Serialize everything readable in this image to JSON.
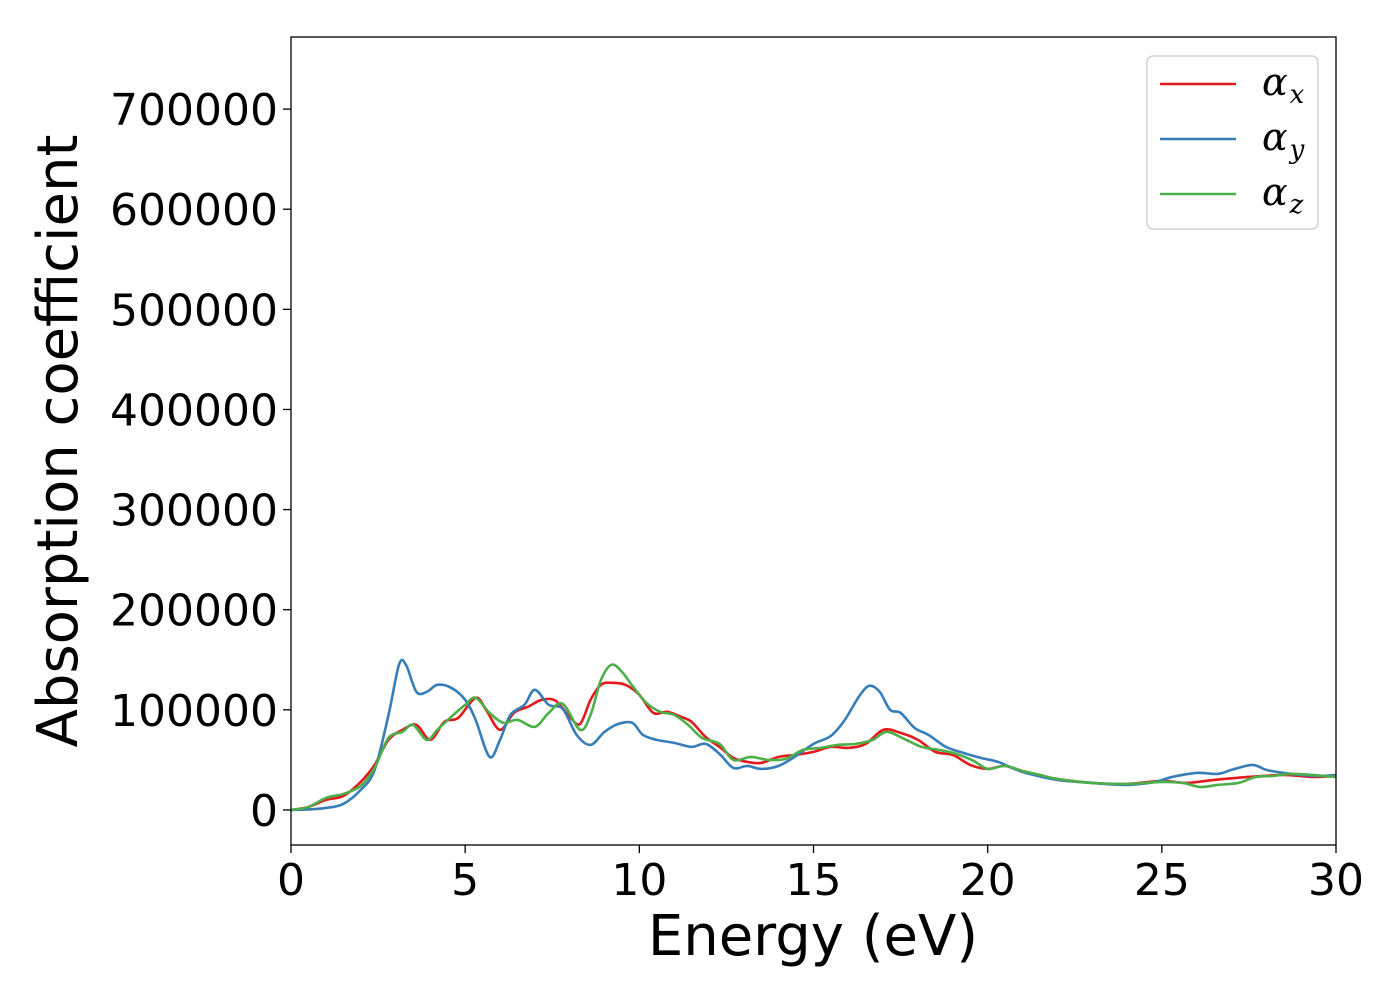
{
  "chart_data": {
    "type": "line",
    "title": "",
    "xlabel": "Energy (eV)",
    "ylabel": "Absorption coefficient",
    "xlim": [
      0,
      30
    ],
    "ylim": [
      -35000,
      772000
    ],
    "xticks": [
      0,
      5,
      10,
      15,
      20,
      25,
      30
    ],
    "yticks": [
      0,
      100000,
      200000,
      300000,
      400000,
      500000,
      600000,
      700000
    ],
    "grid": false,
    "legend_position": "top-right",
    "series": [
      {
        "name": "α_x",
        "label_main": "α",
        "label_sub": "x",
        "color": "#e41a1c",
        "points": [
          [
            0,
            0
          ],
          [
            0.5,
            3000
          ],
          [
            1,
            10000
          ],
          [
            1.5,
            14000
          ],
          [
            2,
            28000
          ],
          [
            2.4,
            45000
          ],
          [
            2.8,
            70000
          ],
          [
            3.2,
            80000
          ],
          [
            3.6,
            85000
          ],
          [
            4,
            70000
          ],
          [
            4.4,
            88000
          ],
          [
            4.8,
            92000
          ],
          [
            5.3,
            112000
          ],
          [
            5.6,
            100000
          ],
          [
            6,
            80000
          ],
          [
            6.4,
            97000
          ],
          [
            6.8,
            103000
          ],
          [
            7.2,
            110000
          ],
          [
            7.6,
            109000
          ],
          [
            8,
            93000
          ],
          [
            8.3,
            86000
          ],
          [
            8.6,
            110000
          ],
          [
            8.9,
            125000
          ],
          [
            9.2,
            127000
          ],
          [
            9.6,
            125000
          ],
          [
            10,
            115000
          ],
          [
            10.4,
            97000
          ],
          [
            10.8,
            98000
          ],
          [
            11.2,
            93000
          ],
          [
            11.5,
            88000
          ],
          [
            11.9,
            73000
          ],
          [
            12.3,
            63000
          ],
          [
            12.7,
            52000
          ],
          [
            13.1,
            48000
          ],
          [
            13.5,
            47000
          ],
          [
            14,
            53000
          ],
          [
            14.5,
            55000
          ],
          [
            15,
            58000
          ],
          [
            15.5,
            63000
          ],
          [
            16,
            62000
          ],
          [
            16.5,
            66000
          ],
          [
            17,
            80000
          ],
          [
            17.5,
            77000
          ],
          [
            18,
            70000
          ],
          [
            18.5,
            58000
          ],
          [
            19,
            55000
          ],
          [
            19.5,
            45000
          ],
          [
            20,
            41000
          ],
          [
            20.5,
            44000
          ],
          [
            21,
            38000
          ],
          [
            21.5,
            34000
          ],
          [
            22,
            31000
          ],
          [
            23,
            27000
          ],
          [
            24,
            26000
          ],
          [
            25,
            29000
          ],
          [
            25.7,
            27000
          ],
          [
            26.5,
            30000
          ],
          [
            27.5,
            33000
          ],
          [
            28.5,
            35000
          ],
          [
            29.3,
            33000
          ],
          [
            30,
            34000
          ]
        ]
      },
      {
        "name": "α_y",
        "label_main": "α",
        "label_sub": "y",
        "color": "#377eb8",
        "points": [
          [
            0,
            0
          ],
          [
            0.5,
            500
          ],
          [
            1,
            2000
          ],
          [
            1.5,
            6000
          ],
          [
            2,
            20000
          ],
          [
            2.4,
            40000
          ],
          [
            2.8,
            95000
          ],
          [
            3.1,
            145000
          ],
          [
            3.3,
            145000
          ],
          [
            3.6,
            118000
          ],
          [
            3.9,
            118000
          ],
          [
            4.2,
            125000
          ],
          [
            4.6,
            122000
          ],
          [
            5,
            110000
          ],
          [
            5.3,
            90000
          ],
          [
            5.7,
            53000
          ],
          [
            6,
            70000
          ],
          [
            6.3,
            95000
          ],
          [
            6.7,
            105000
          ],
          [
            7,
            120000
          ],
          [
            7.4,
            105000
          ],
          [
            7.8,
            101000
          ],
          [
            8.2,
            75000
          ],
          [
            8.6,
            65000
          ],
          [
            9,
            78000
          ],
          [
            9.4,
            86000
          ],
          [
            9.8,
            87000
          ],
          [
            10.1,
            75000
          ],
          [
            10.5,
            70000
          ],
          [
            11,
            67000
          ],
          [
            11.5,
            63000
          ],
          [
            11.9,
            66000
          ],
          [
            12.3,
            56000
          ],
          [
            12.7,
            42000
          ],
          [
            13.1,
            44000
          ],
          [
            13.5,
            41000
          ],
          [
            14,
            44000
          ],
          [
            14.5,
            54000
          ],
          [
            15,
            66000
          ],
          [
            15.5,
            74000
          ],
          [
            15.9,
            90000
          ],
          [
            16.3,
            113000
          ],
          [
            16.6,
            124000
          ],
          [
            16.9,
            118000
          ],
          [
            17.2,
            100000
          ],
          [
            17.5,
            97000
          ],
          [
            17.9,
            82000
          ],
          [
            18.3,
            75000
          ],
          [
            18.8,
            63000
          ],
          [
            19.3,
            57000
          ],
          [
            19.8,
            52000
          ],
          [
            20.3,
            48000
          ],
          [
            20.7,
            42000
          ],
          [
            21.2,
            36000
          ],
          [
            22,
            30000
          ],
          [
            23,
            27000
          ],
          [
            24,
            25000
          ],
          [
            24.8,
            28000
          ],
          [
            25.3,
            33000
          ],
          [
            26,
            37000
          ],
          [
            26.6,
            36000
          ],
          [
            27,
            40000
          ],
          [
            27.6,
            45000
          ],
          [
            28,
            40000
          ],
          [
            28.5,
            37000
          ],
          [
            29,
            35000
          ],
          [
            29.5,
            34000
          ],
          [
            30,
            35000
          ]
        ]
      },
      {
        "name": "α_z",
        "label_main": "α",
        "label_sub": "z",
        "color": "#4daf4a",
        "points": [
          [
            0,
            0
          ],
          [
            0.5,
            3000
          ],
          [
            1,
            12000
          ],
          [
            1.5,
            16000
          ],
          [
            2,
            24000
          ],
          [
            2.4,
            42000
          ],
          [
            2.8,
            72000
          ],
          [
            3.2,
            78000
          ],
          [
            3.5,
            85000
          ],
          [
            3.9,
            70000
          ],
          [
            4.2,
            80000
          ],
          [
            4.6,
            93000
          ],
          [
            5,
            105000
          ],
          [
            5.3,
            112000
          ],
          [
            5.7,
            97000
          ],
          [
            6.1,
            87000
          ],
          [
            6.5,
            90000
          ],
          [
            7,
            83000
          ],
          [
            7.4,
            97000
          ],
          [
            7.8,
            106000
          ],
          [
            8.3,
            80000
          ],
          [
            8.6,
            95000
          ],
          [
            8.9,
            130000
          ],
          [
            9.2,
            145000
          ],
          [
            9.5,
            138000
          ],
          [
            9.8,
            124000
          ],
          [
            10.2,
            107000
          ],
          [
            10.6,
            98000
          ],
          [
            11,
            95000
          ],
          [
            11.4,
            85000
          ],
          [
            11.8,
            72000
          ],
          [
            12.3,
            66000
          ],
          [
            12.7,
            50000
          ],
          [
            13.2,
            53000
          ],
          [
            13.7,
            50000
          ],
          [
            14.2,
            51000
          ],
          [
            14.7,
            60000
          ],
          [
            15.2,
            62000
          ],
          [
            15.7,
            65000
          ],
          [
            16.2,
            66000
          ],
          [
            16.7,
            70000
          ],
          [
            17.1,
            78000
          ],
          [
            17.6,
            71000
          ],
          [
            18.1,
            63000
          ],
          [
            18.6,
            60000
          ],
          [
            19.1,
            56000
          ],
          [
            19.6,
            49000
          ],
          [
            20,
            41000
          ],
          [
            20.5,
            44000
          ],
          [
            21,
            39000
          ],
          [
            21.5,
            35000
          ],
          [
            22,
            31000
          ],
          [
            23,
            27000
          ],
          [
            24,
            26000
          ],
          [
            25,
            28000
          ],
          [
            25.6,
            27000
          ],
          [
            26.1,
            23000
          ],
          [
            26.6,
            25000
          ],
          [
            27.2,
            27000
          ],
          [
            27.7,
            33000
          ],
          [
            28.2,
            34000
          ],
          [
            28.7,
            36000
          ],
          [
            29.3,
            35000
          ],
          [
            30,
            33000
          ]
        ]
      }
    ]
  }
}
